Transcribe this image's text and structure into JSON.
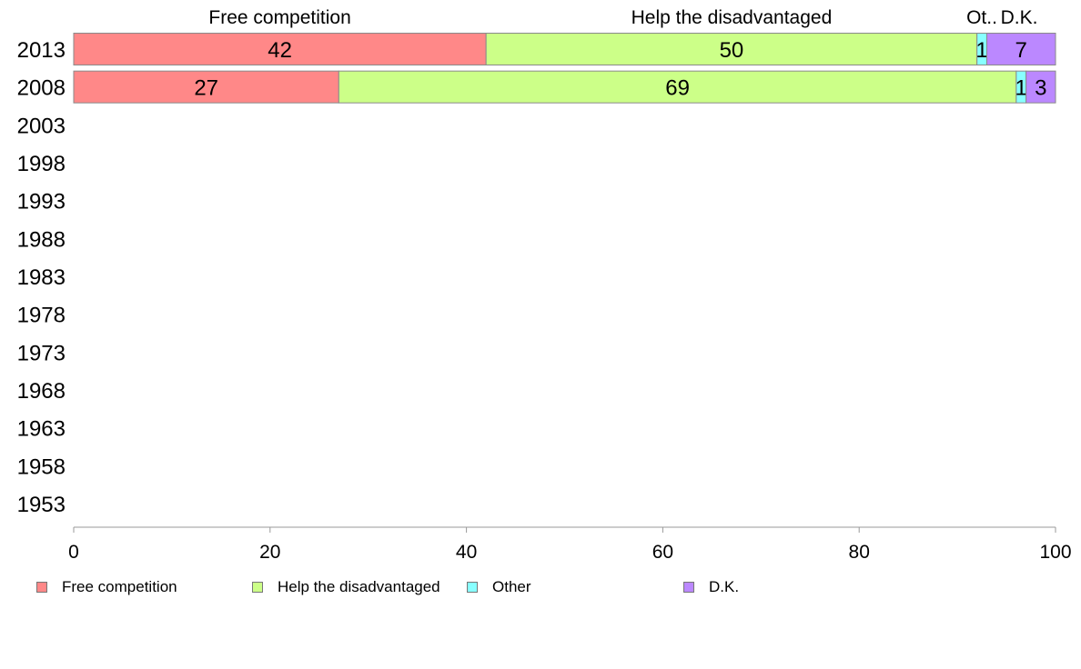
{
  "chart_data": {
    "type": "bar",
    "orientation": "horizontal",
    "stacked": true,
    "categories": [
      "2013",
      "2008",
      "2003",
      "1998",
      "1993",
      "1988",
      "1983",
      "1978",
      "1973",
      "1968",
      "1963",
      "1958",
      "1953"
    ],
    "series": [
      {
        "name": "Free competition",
        "color": "#ff8888",
        "values": [
          42,
          27,
          null,
          null,
          null,
          null,
          null,
          null,
          null,
          null,
          null,
          null,
          null
        ]
      },
      {
        "name": "Help the disadvantaged",
        "color": "#ccff88",
        "values": [
          50,
          69,
          null,
          null,
          null,
          null,
          null,
          null,
          null,
          null,
          null,
          null,
          null
        ]
      },
      {
        "name": "Other",
        "color": "#88ffff",
        "values": [
          1,
          1,
          null,
          null,
          null,
          null,
          null,
          null,
          null,
          null,
          null,
          null,
          null
        ]
      },
      {
        "name": "D.K.",
        "color": "#bb88ff",
        "values": [
          7,
          3,
          null,
          null,
          null,
          null,
          null,
          null,
          null,
          null,
          null,
          null,
          null
        ]
      }
    ],
    "top_labels": [
      "Free competition",
      "Help the disadvantaged",
      "Ot..",
      "D.K."
    ],
    "x_ticks": [
      0,
      20,
      40,
      60,
      80,
      100
    ],
    "xlim": [
      0,
      100
    ],
    "grid": false,
    "legend_position": "bottom"
  }
}
